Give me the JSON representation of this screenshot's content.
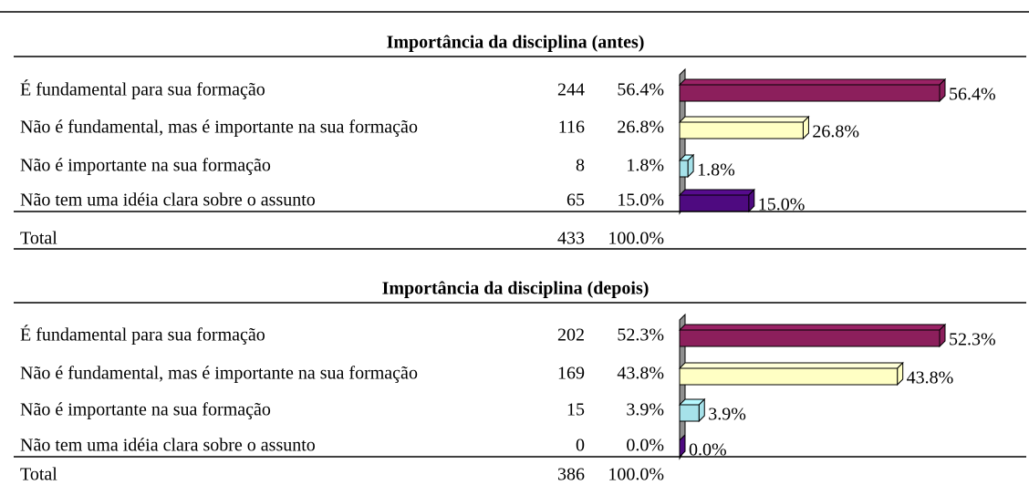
{
  "sections": [
    {
      "title": "Importância da disciplina (antes)",
      "rows": [
        {
          "label": "É fundamental para sua formação",
          "count": 244,
          "percent": 56.4,
          "percent_label": "56.4%",
          "color": "#8c1f5c"
        },
        {
          "label": "Não é fundamental, mas é importante na sua formação",
          "count": 116,
          "percent": 26.8,
          "percent_label": "26.8%",
          "color": "#ffffc4"
        },
        {
          "label": "Não é importante na sua formação",
          "count": 8,
          "percent": 1.8,
          "percent_label": "1.8%",
          "color": "#a6e2ea"
        },
        {
          "label": "Não tem uma idéia clara sobre o assunto",
          "count": 65,
          "percent": 15.0,
          "percent_label": "15.0%",
          "color": "#4e0a80"
        }
      ],
      "total": {
        "label": "Total",
        "count": 433,
        "percent_label": "100.0%"
      }
    },
    {
      "title": "Importância da disciplina (depois)",
      "rows": [
        {
          "label": "É fundamental para sua formação",
          "count": 202,
          "percent": 52.3,
          "percent_label": "52.3%",
          "color": "#8c1f5c"
        },
        {
          "label": "Não é fundamental, mas é importante na sua formação",
          "count": 169,
          "percent": 43.8,
          "percent_label": "43.8%",
          "color": "#ffffc4"
        },
        {
          "label": "Não é importante na sua formação",
          "count": 15,
          "percent": 3.9,
          "percent_label": "3.9%",
          "color": "#a6e2ea"
        },
        {
          "label": "Não tem uma idéia clara sobre o assunto",
          "count": 0,
          "percent": 0.0,
          "percent_label": "0.0%",
          "color": "#4e0a80"
        }
      ],
      "total": {
        "label": "Total",
        "count": 386,
        "percent_label": "100.0%"
      }
    }
  ]
}
